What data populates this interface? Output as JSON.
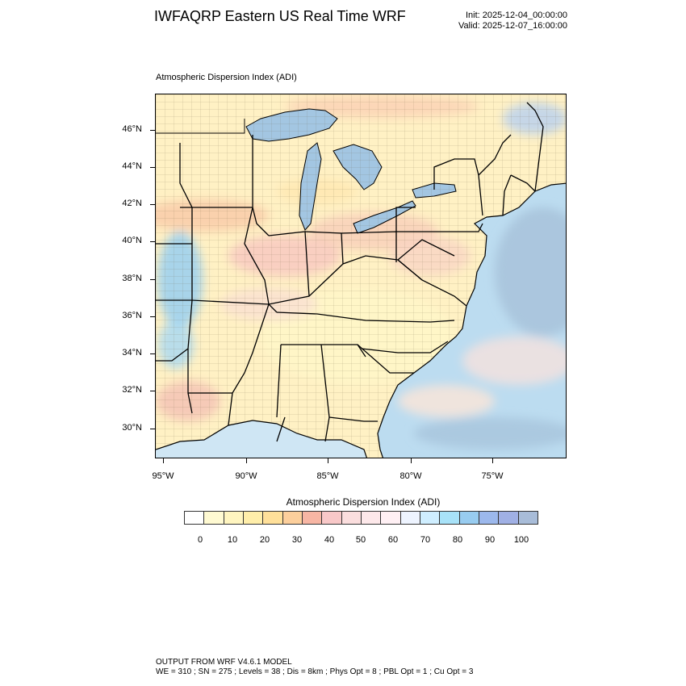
{
  "header": {
    "title": "IWFAQRP Eastern US Real Time WRF",
    "init": "Init: 2025-12-04_00:00:00",
    "valid": "Valid: 2025-12-07_16:00:00"
  },
  "plot": {
    "title": "Atmospheric Dispersion Index   (ADI)",
    "lat_labels": [
      "46°N",
      "44°N",
      "42°N",
      "40°N",
      "38°N",
      "36°N",
      "34°N",
      "32°N",
      "30°N"
    ],
    "lon_labels": [
      "95°W",
      "90°W",
      "85°W",
      "80°W",
      "75°W"
    ]
  },
  "colorbar": {
    "title": "Atmospheric Dispersion Index  (ADI)",
    "labels": [
      "0",
      "10",
      "20",
      "30",
      "40",
      "50",
      "60",
      "70",
      "80",
      "90",
      "100"
    ],
    "colors": [
      "#ffffff",
      "#fffad2",
      "#fff5c0",
      "#ffeeaa",
      "#ffe09a",
      "#fccf9c",
      "#f7b6a4",
      "#f8c8c8",
      "#fbdede",
      "#fde8ea",
      "#fff0f4",
      "#eef4ff",
      "#cfeeff",
      "#a8e2f8",
      "#98ccf0",
      "#9cb8ec",
      "#a0b0e4",
      "#a8bcd8"
    ]
  },
  "footer": {
    "line1": "OUTPUT FROM WRF V4.6.1 MODEL",
    "line2": "WE = 310 ; SN = 275 ; Levels = 38 ; Dis = 8km ; Phys Opt = 8 ; PBL Opt = 1 ; Cu Opt = 3"
  }
}
